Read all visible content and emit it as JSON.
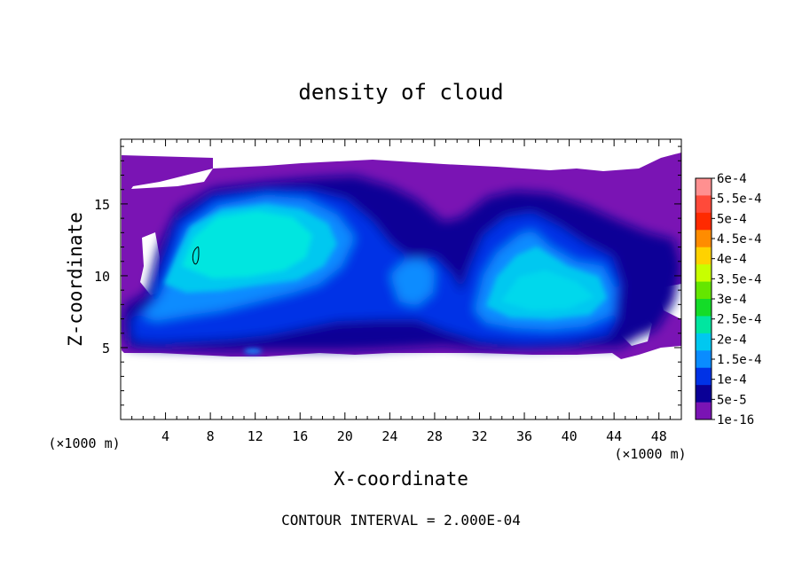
{
  "chart_data": {
    "type": "heatmap",
    "title": "density of cloud",
    "xlabel": "X-coordinate",
    "ylabel": "Z-coordinate",
    "x_unit": "(×1000 m)",
    "y_unit": "(×1000 m)",
    "xlim": [
      0,
      50
    ],
    "ylim": [
      0,
      19.5
    ],
    "x_ticks": [
      "4",
      "8",
      "12",
      "16",
      "20",
      "24",
      "28",
      "32",
      "36",
      "40",
      "44",
      "48"
    ],
    "y_ticks": [
      "5",
      "10",
      "15"
    ],
    "footer": "CONTOUR INTERVAL = 2.000E-04",
    "colorbar": {
      "labels": [
        "6e-4",
        "5.5e-4",
        "5e-4",
        "4.5e-4",
        "4e-4",
        "3.5e-4",
        "3e-4",
        "2.5e-4",
        "2e-4",
        "1.5e-4",
        "1e-4",
        "5e-5",
        "1e-16"
      ],
      "colors": [
        "#ff9090",
        "#ff4a3a",
        "#ff2a00",
        "#ff8c00",
        "#ffd200",
        "#c8ff00",
        "#64e600",
        "#14dc28",
        "#00e6a0",
        "#00c8f0",
        "#0a8cff",
        "#0032e6",
        "#0a0096",
        "#7a14b4"
      ]
    },
    "features": [
      {
        "label": "main cloud core",
        "x_range": [
          2.5,
          21
        ],
        "z_range": [
          7,
          16.5
        ],
        "peak": "1.5e-4"
      },
      {
        "label": "secondary cloud",
        "x_range": [
          31,
          45
        ],
        "z_range": [
          5,
          16
        ],
        "peak": "1.5e-4"
      },
      {
        "label": "anvil layer",
        "x_range": [
          0,
          50
        ],
        "z_range": [
          4.8,
          18.5
        ],
        "min": "1e-16"
      },
      {
        "label": "contour loop",
        "x": 6.8,
        "z": 11.6
      }
    ]
  }
}
